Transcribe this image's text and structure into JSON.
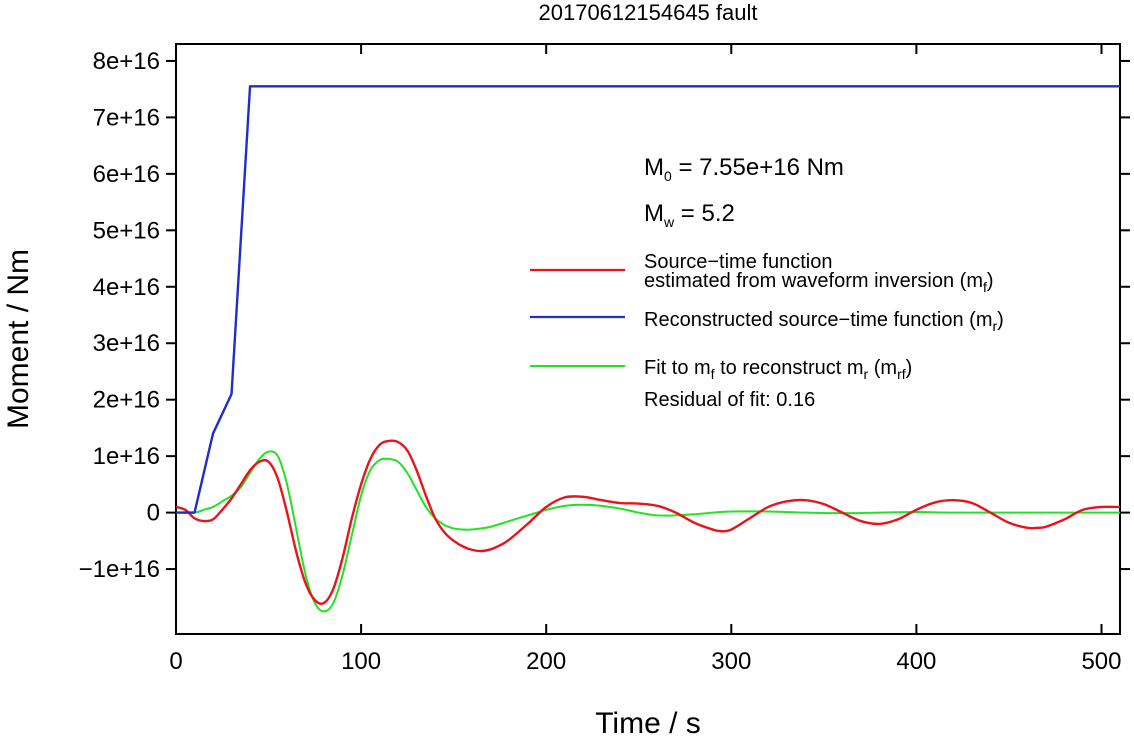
{
  "chart_data": {
    "type": "line",
    "title": "20170612154645 fault",
    "xlabel": "Time / s",
    "ylabel": "Moment / Nm",
    "xlim": [
      0,
      510
    ],
    "ylim": [
      -2.15e+16,
      8.3e+16
    ],
    "x_ticks": [
      0,
      100,
      200,
      300,
      400,
      500
    ],
    "x_tick_labels": [
      "0",
      "100",
      "200",
      "300",
      "400",
      "500"
    ],
    "y_ticks": [
      -1e+16,
      0,
      1e+16,
      2e+16,
      3e+16,
      4e+16,
      5e+16,
      6e+16,
      7e+16,
      8e+16
    ],
    "y_tick_labels": [
      "−1e+16",
      "0",
      "1e+16",
      "2e+16",
      "3e+16",
      "4e+16",
      "5e+16",
      "6e+16",
      "7e+16",
      "8e+16"
    ],
    "grid": false,
    "annotations": {
      "m0_prefix": "M",
      "m0_sub": "0",
      "m0_rest": " = 7.55e+16 Nm",
      "mw_prefix": "M",
      "mw_sub": "w",
      "mw_rest": " = 5.2",
      "residual": "Residual of fit: 0.16"
    },
    "legend": {
      "position": "right",
      "entries": [
        {
          "line1": "Source−time function",
          "line2_a": "estimated from waveform inversion (m",
          "line2_sub": "f",
          "line2_b": ")",
          "color": "#e8141c"
        },
        {
          "line1_a": "Reconstructed source−time function (m",
          "line1_sub": "r",
          "line1_b": ")",
          "color": "#1f2ec9"
        },
        {
          "line1_a": "Fit to m",
          "line1_sub1": "f",
          "line1_b": " to reconstruct m",
          "line1_sub2": "r",
          "line1_c": " (m",
          "line1_sub3": "rf",
          "line1_d": ")",
          "color": "#22e322"
        }
      ]
    },
    "series": [
      {
        "color": "#e8141c",
        "x": [
          0,
          5,
          10,
          15,
          20,
          25,
          30,
          35,
          40,
          45,
          50,
          55,
          60,
          65,
          70,
          75,
          80,
          85,
          90,
          95,
          100,
          105,
          110,
          115,
          120,
          125,
          130,
          135,
          140,
          145,
          150,
          155,
          160,
          165,
          170,
          175,
          180,
          190,
          200,
          210,
          220,
          230,
          240,
          250,
          260,
          270,
          280,
          290,
          295,
          300,
          310,
          320,
          330,
          340,
          350,
          360,
          370,
          380,
          390,
          400,
          410,
          420,
          430,
          440,
          450,
          460,
          465,
          470,
          480,
          490,
          500,
          510
        ],
        "y": [
          1000000000000000.0,
          500000000000000.0,
          -1000000000000000.0,
          -1500000000000000.0,
          -1200000000000000.0,
          500000000000000.0,
          2500000000000000.0,
          5000000000000000.0,
          7500000000000000.0,
          9000000000000000.0,
          9000000000000000.0,
          6000000000000000.0,
          0.0,
          -7000000000000000.0,
          -1.25e+16,
          -1.55e+16,
          -1.6e+16,
          -1.35e+16,
          -8000000000000000.0,
          -1000000000000000.0,
          5000000000000000.0,
          9500000000000000.0,
          1.2e+16,
          1.27e+16,
          1.25e+16,
          1.1e+16,
          7500000000000000.0,
          3000000000000000.0,
          -1000000000000000.0,
          -3500000000000000.0,
          -5000000000000000.0,
          -6000000000000000.0,
          -6600000000000000.0,
          -6800000000000000.0,
          -6500000000000000.0,
          -5800000000000000.0,
          -4800000000000000.0,
          -2000000000000000.0,
          1000000000000000.0,
          2700000000000000.0,
          2800000000000000.0,
          2200000000000000.0,
          1700000000000000.0,
          1600000000000000.0,
          1200000000000000.0,
          0.0,
          -1800000000000000.0,
          -3000000000000000.0,
          -3300000000000000.0,
          -3000000000000000.0,
          -1000000000000000.0,
          1000000000000000.0,
          2000000000000000.0,
          2200000000000000.0,
          1500000000000000.0,
          0.0,
          -1500000000000000.0,
          -2000000000000000.0,
          -1200000000000000.0,
          500000000000000.0,
          1800000000000000.0,
          2200000000000000.0,
          1700000000000000.0,
          0.0,
          -1800000000000000.0,
          -2700000000000000.0,
          -2700000000000000.0,
          -2500000000000000.0,
          -1200000000000000.0,
          500000000000000.0,
          1000000000000000.0,
          1000000000000000.0
        ]
      },
      {
        "color": "#1f2ec9",
        "x": [
          0,
          10,
          20,
          30,
          40,
          510
        ],
        "y": [
          0,
          0,
          1.4e+16,
          2.1e+16,
          7.55e+16,
          7.55e+16
        ]
      },
      {
        "color": "#22e322",
        "x": [
          0,
          10,
          15,
          20,
          25,
          30,
          35,
          40,
          45,
          50,
          55,
          60,
          65,
          70,
          75,
          80,
          85,
          90,
          95,
          100,
          105,
          110,
          115,
          120,
          125,
          130,
          135,
          140,
          145,
          150,
          155,
          160,
          165,
          170,
          180,
          190,
          200,
          210,
          220,
          230,
          240,
          250,
          260,
          270,
          280,
          290,
          300,
          320,
          340,
          360,
          380,
          400,
          420,
          440,
          460,
          480,
          500,
          510
        ],
        "y": [
          0,
          0,
          500000000000000.0,
          1000000000000000.0,
          2000000000000000.0,
          3000000000000000.0,
          4500000000000000.0,
          7000000000000000.0,
          9500000000000000.0,
          1.08e+16,
          1e+16,
          5000000000000000.0,
          -3000000000000000.0,
          -1.1e+16,
          -1.6e+16,
          -1.75e+16,
          -1.6e+16,
          -1.1e+16,
          -4000000000000000.0,
          3000000000000000.0,
          7500000000000000.0,
          9300000000000000.0,
          9500000000000000.0,
          9000000000000000.0,
          7000000000000000.0,
          4000000000000000.0,
          1000000000000000.0,
          -1000000000000000.0,
          -2200000000000000.0,
          -2800000000000000.0,
          -3000000000000000.0,
          -3000000000000000.0,
          -2800000000000000.0,
          -2500000000000000.0,
          -1500000000000000.0,
          -500000000000000.0,
          500000000000000.0,
          1200000000000000.0,
          1400000000000000.0,
          1200000000000000.0,
          700000000000000.0,
          0.0,
          -500000000000000.0,
          -500000000000000.0,
          -300000000000000.0,
          0.0,
          200000000000000.0,
          200000000000000.0,
          0.0,
          -100000000000000.0,
          0.0,
          100000000000000.0,
          0.0,
          0.0,
          0.0,
          0.0,
          0.0,
          0.0
        ]
      }
    ]
  }
}
